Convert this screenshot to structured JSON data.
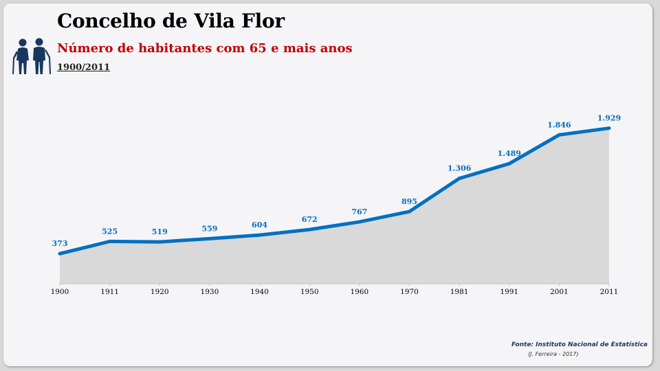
{
  "header": {
    "title": "Concelho de Vila Flor",
    "subtitle": "Número de habitantes com 65 e mais anos",
    "period": "1900/2011",
    "icon": "elderly-couple-icon"
  },
  "footer": {
    "source": "Fonte: Instituto Nacional de Estatística",
    "credit": "(J. Ferreira - 2017)"
  },
  "colors": {
    "line": "#0070c0",
    "area": "#d9d9d9",
    "subtitle": "#c00000",
    "source": "#1f3864"
  },
  "chart_data": {
    "type": "area",
    "categories": [
      "1900",
      "1911",
      "1920",
      "1930",
      "1940",
      "1950",
      "1960",
      "1970",
      "1981",
      "1991",
      "2001",
      "2011"
    ],
    "values": [
      373,
      525,
      519,
      559,
      604,
      672,
      767,
      895,
      1306,
      1489,
      1846,
      1929
    ],
    "value_labels": [
      "373",
      "525",
      "519",
      "559",
      "604",
      "672",
      "767",
      "895",
      "1.306",
      "1.489",
      "1.846",
      "1.929"
    ],
    "ylim": [
      0,
      2300
    ],
    "grid": false,
    "legend": "none"
  }
}
